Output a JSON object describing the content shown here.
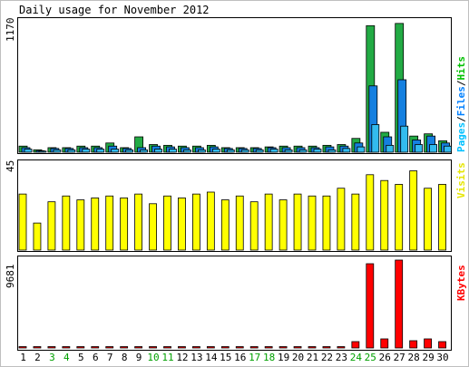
{
  "chart_data": [
    {
      "type": "bar",
      "title": "Daily usage for November 2012",
      "ymax_label": "1170",
      "ylim": [
        0,
        1170
      ],
      "legend": [
        "Pages",
        "/",
        "Files",
        "/",
        "Hits"
      ],
      "legend_colors": [
        "#00c0ff",
        "#000000",
        "#0080ff",
        "#000000",
        "#00c000"
      ],
      "colors": {
        "hits": "#22aa44",
        "files": "#1580e0",
        "pages": "#33bbee"
      },
      "categories": [
        "1",
        "2",
        "3",
        "4",
        "5",
        "6",
        "7",
        "8",
        "9",
        "10",
        "11",
        "12",
        "13",
        "14",
        "15",
        "16",
        "17",
        "18",
        "19",
        "20",
        "21",
        "22",
        "23",
        "24",
        "25",
        "26",
        "27",
        "28",
        "29",
        "30"
      ],
      "weekend_days": [
        "3",
        "4",
        "10",
        "11",
        "17",
        "18",
        "24",
        "25"
      ],
      "weekend_color": "#00a000",
      "series": [
        {
          "name": "Hits",
          "values": [
            55,
            22,
            41,
            41,
            55,
            55,
            83,
            41,
            138,
            69,
            62,
            55,
            55,
            62,
            41,
            41,
            41,
            48,
            55,
            55,
            55,
            62,
            69,
            124,
            1135,
            179,
            1155,
            145,
            165,
            103
          ]
        },
        {
          "name": "Files",
          "values": [
            41,
            14,
            34,
            34,
            41,
            41,
            55,
            34,
            41,
            55,
            48,
            41,
            41,
            48,
            34,
            34,
            34,
            41,
            41,
            41,
            41,
            48,
            55,
            83,
            595,
            138,
            650,
            110,
            145,
            83
          ]
        },
        {
          "name": "Pages",
          "values": [
            28,
            10,
            21,
            21,
            28,
            28,
            28,
            21,
            21,
            28,
            28,
            21,
            21,
            28,
            21,
            21,
            21,
            28,
            21,
            21,
            28,
            21,
            34,
            48,
            248,
            62,
            234,
            69,
            69,
            55
          ]
        }
      ]
    },
    {
      "type": "bar",
      "ymax_label": "45",
      "ylim": [
        0,
        45
      ],
      "legend": [
        "Visits"
      ],
      "color": "#ffff00",
      "series": [
        {
          "name": "Visits",
          "values": [
            29,
            14,
            25,
            28,
            26,
            27,
            28,
            27,
            29,
            24,
            28,
            27,
            29,
            30,
            26,
            28,
            25,
            29,
            26,
            29,
            28,
            28,
            32,
            29,
            39,
            36,
            34,
            41,
            32,
            34
          ]
        }
      ]
    },
    {
      "type": "bar",
      "ymax_label": "9681",
      "ylim": [
        0,
        9681
      ],
      "legend": [
        "KBytes"
      ],
      "color": "#ff0000",
      "series": [
        {
          "name": "KBytes",
          "values": [
            100,
            100,
            100,
            100,
            100,
            100,
            100,
            100,
            100,
            100,
            100,
            100,
            100,
            100,
            100,
            100,
            100,
            100,
            100,
            100,
            100,
            100,
            100,
            700,
            9280,
            1000,
            9681,
            800,
            1000,
            700
          ]
        }
      ]
    }
  ]
}
